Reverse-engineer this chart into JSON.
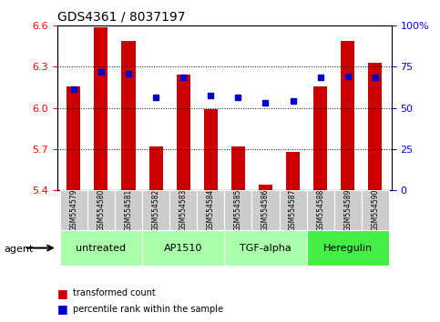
{
  "title": "GDS4361 / 8037197",
  "samples": [
    "GSM554579",
    "GSM554580",
    "GSM554581",
    "GSM554582",
    "GSM554583",
    "GSM554584",
    "GSM554585",
    "GSM554586",
    "GSM554587",
    "GSM554588",
    "GSM554589",
    "GSM554590"
  ],
  "bar_values": [
    6.16,
    6.59,
    6.49,
    5.72,
    6.24,
    5.99,
    5.72,
    5.44,
    5.68,
    6.16,
    6.49,
    6.33
  ],
  "dot_values": [
    6.14,
    6.26,
    6.25,
    6.08,
    6.22,
    6.09,
    6.08,
    6.04,
    6.05,
    6.22,
    6.23,
    6.22
  ],
  "bar_bottom": 5.4,
  "ylim_left": [
    5.4,
    6.6
  ],
  "ylim_right": [
    0,
    100
  ],
  "yticks_left": [
    5.4,
    5.7,
    6.0,
    6.3,
    6.6
  ],
  "yticks_right": [
    0,
    25,
    50,
    75,
    100
  ],
  "ytick_labels_right": [
    "0",
    "25",
    "50",
    "75",
    "100%"
  ],
  "bar_color": "#cc0000",
  "dot_color": "#0000cc",
  "agents": [
    {
      "label": "untreated",
      "start": 0,
      "end": 3
    },
    {
      "label": "AP1510",
      "start": 3,
      "end": 6
    },
    {
      "label": "TGF-alpha",
      "start": 6,
      "end": 9
    },
    {
      "label": "Heregulin",
      "start": 9,
      "end": 12
    }
  ],
  "agent_fill_colors": [
    "#aaffaa",
    "#aaffaa",
    "#aaffaa",
    "#44ee44"
  ],
  "legend_bar_label": "transformed count",
  "legend_dot_label": "percentile rank within the sample",
  "agent_label": "agent",
  "background_color": "#ffffff",
  "xlabel_area_color": "#cccccc"
}
